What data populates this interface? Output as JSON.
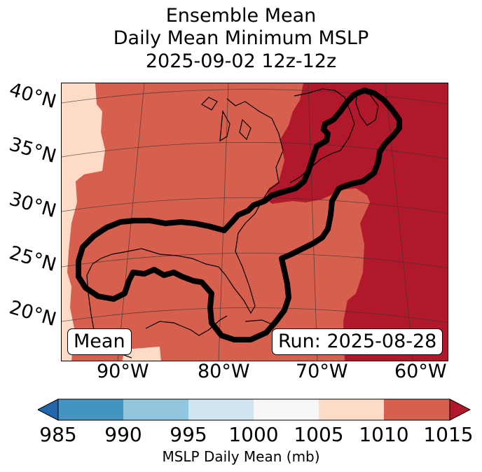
{
  "title": {
    "line1": "Ensemble Mean",
    "line2": "Daily Mean Minimum MSLP",
    "line3": "2025-09-02 12z-12z"
  },
  "map": {
    "latitude_labels": [
      "40°N",
      "35°N",
      "30°N",
      "25°N",
      "20°N"
    ],
    "longitude_labels": [
      "90°W",
      "80°W",
      "70°W",
      "60°W"
    ],
    "mean_label": "Mean",
    "run_label": "Run: 2025-08-28",
    "field_colors": {
      "1005_1010": "#fddbc7",
      "1010_1015": "#d6604d",
      "above_1015": "#b2182b"
    },
    "contour_color": "#000000"
  },
  "colorbar": {
    "ticks": [
      "985",
      "990",
      "995",
      "1000",
      "1005",
      "1010",
      "1015"
    ],
    "label": "MSLP Daily Mean (mb)",
    "colors": {
      "under": "#2166ac",
      "985_990": "#4393c3",
      "990_995": "#92c5de",
      "995_1000": "#d1e5f0",
      "1000_1005": "#f7f7f7",
      "1005_1010": "#fddbc7",
      "1010_1015": "#d6604d",
      "over": "#b2182b"
    }
  }
}
